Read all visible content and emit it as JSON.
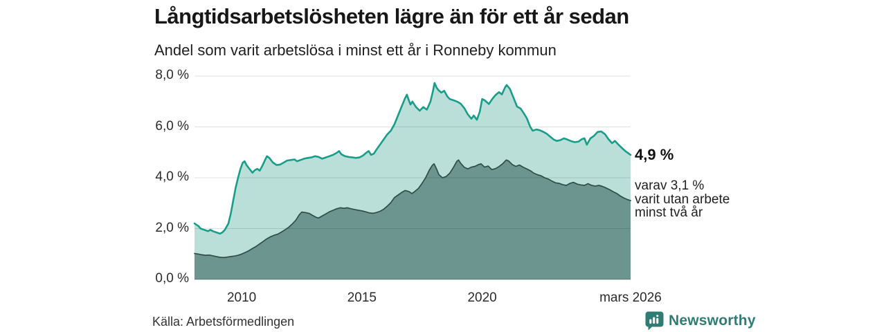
{
  "header": {
    "title": "Långtidsarbetslösheten lägre än för ett år sedan",
    "subtitle": "Andel som varit arbetslösa i minst ett år i Ronneby kommun"
  },
  "annotations": {
    "end_value_label": "4,9 %",
    "sub_lines": [
      "varav 3,1 %",
      "varit utan arbete",
      "minst två år"
    ]
  },
  "footer": {
    "source": "Källa: Arbetsförmedlingen",
    "brand": "Newsworthy"
  },
  "colors": {
    "line_total": "#189d88",
    "fill_total": "#b9dfd8",
    "line_two_years": "#2f4d48",
    "fill_two_years": "#6b958e",
    "gridline": "rgba(0,0,0,0.12)",
    "baseline": "rgba(0,0,0,0.30)",
    "brand_teal": "#2e7c74"
  },
  "chart_data": {
    "type": "area",
    "title": "Långtidsarbetslösheten lägre än för ett år sedan",
    "subtitle": "Andel som varit arbetslösa i minst ett år i Ronneby kommun",
    "unit": "%",
    "x_domain": [
      2008.04,
      2026.17
    ],
    "y_domain": [
      0,
      8
    ],
    "grid": true,
    "y_ticks": [
      {
        "v": 0,
        "label": "0,0 %"
      },
      {
        "v": 2,
        "label": "2,0 %"
      },
      {
        "v": 4,
        "label": "4,0 %"
      },
      {
        "v": 6,
        "label": "6,0 %"
      },
      {
        "v": 8,
        "label": "8,0 %"
      }
    ],
    "x_ticks": [
      {
        "v": 2010,
        "label": "2010"
      },
      {
        "v": 2015,
        "label": "2015"
      },
      {
        "v": 2020,
        "label": "2020"
      },
      {
        "v": 2026.17,
        "label": "mars 2026"
      }
    ],
    "series": [
      {
        "name": "Andel som varit arbetslösa minst ett år",
        "end_label": "4,9 %",
        "stroke": "#189d88",
        "stroke_width": 2.6,
        "fill": "#b9dfd8",
        "points": [
          [
            2008.04,
            2.2
          ],
          [
            2008.2,
            2.1
          ],
          [
            2008.3,
            2.0
          ],
          [
            2008.45,
            1.95
          ],
          [
            2008.6,
            1.9
          ],
          [
            2008.7,
            1.95
          ],
          [
            2008.8,
            1.9
          ],
          [
            2008.95,
            1.85
          ],
          [
            2009.1,
            1.8
          ],
          [
            2009.2,
            1.85
          ],
          [
            2009.3,
            1.95
          ],
          [
            2009.45,
            2.2
          ],
          [
            2009.55,
            2.6
          ],
          [
            2009.65,
            3.1
          ],
          [
            2009.75,
            3.6
          ],
          [
            2009.85,
            4.0
          ],
          [
            2009.95,
            4.35
          ],
          [
            2010.05,
            4.6
          ],
          [
            2010.12,
            4.65
          ],
          [
            2010.2,
            4.5
          ],
          [
            2010.3,
            4.38
          ],
          [
            2010.45,
            4.2
          ],
          [
            2010.55,
            4.3
          ],
          [
            2010.65,
            4.35
          ],
          [
            2010.75,
            4.28
          ],
          [
            2010.85,
            4.45
          ],
          [
            2010.95,
            4.65
          ],
          [
            2011.05,
            4.85
          ],
          [
            2011.15,
            4.78
          ],
          [
            2011.3,
            4.6
          ],
          [
            2011.45,
            4.5
          ],
          [
            2011.6,
            4.52
          ],
          [
            2011.75,
            4.6
          ],
          [
            2011.9,
            4.68
          ],
          [
            2012.05,
            4.7
          ],
          [
            2012.2,
            4.72
          ],
          [
            2012.3,
            4.65
          ],
          [
            2012.45,
            4.7
          ],
          [
            2012.6,
            4.75
          ],
          [
            2012.75,
            4.78
          ],
          [
            2012.9,
            4.8
          ],
          [
            2013.05,
            4.85
          ],
          [
            2013.2,
            4.82
          ],
          [
            2013.35,
            4.75
          ],
          [
            2013.5,
            4.8
          ],
          [
            2013.65,
            4.85
          ],
          [
            2013.8,
            4.9
          ],
          [
            2013.95,
            4.98
          ],
          [
            2014.05,
            5.05
          ],
          [
            2014.15,
            4.92
          ],
          [
            2014.3,
            4.85
          ],
          [
            2014.45,
            4.82
          ],
          [
            2014.6,
            4.8
          ],
          [
            2014.75,
            4.78
          ],
          [
            2014.9,
            4.8
          ],
          [
            2015.05,
            4.88
          ],
          [
            2015.2,
            5.0
          ],
          [
            2015.28,
            5.05
          ],
          [
            2015.38,
            4.9
          ],
          [
            2015.5,
            4.95
          ],
          [
            2015.6,
            5.1
          ],
          [
            2015.75,
            5.3
          ],
          [
            2015.9,
            5.5
          ],
          [
            2016.05,
            5.7
          ],
          [
            2016.2,
            5.85
          ],
          [
            2016.35,
            6.1
          ],
          [
            2016.5,
            6.45
          ],
          [
            2016.65,
            6.8
          ],
          [
            2016.78,
            7.1
          ],
          [
            2016.87,
            7.27
          ],
          [
            2016.95,
            7.05
          ],
          [
            2017.02,
            6.88
          ],
          [
            2017.1,
            7.0
          ],
          [
            2017.25,
            6.78
          ],
          [
            2017.4,
            6.64
          ],
          [
            2017.55,
            6.78
          ],
          [
            2017.7,
            6.68
          ],
          [
            2017.85,
            7.0
          ],
          [
            2017.95,
            7.4
          ],
          [
            2018.02,
            7.73
          ],
          [
            2018.1,
            7.55
          ],
          [
            2018.18,
            7.45
          ],
          [
            2018.3,
            7.35
          ],
          [
            2018.42,
            7.42
          ],
          [
            2018.55,
            7.2
          ],
          [
            2018.65,
            7.1
          ],
          [
            2018.8,
            7.05
          ],
          [
            2018.95,
            7.0
          ],
          [
            2019.1,
            6.92
          ],
          [
            2019.25,
            6.75
          ],
          [
            2019.4,
            6.5
          ],
          [
            2019.55,
            6.32
          ],
          [
            2019.65,
            6.45
          ],
          [
            2019.78,
            6.28
          ],
          [
            2019.9,
            6.6
          ],
          [
            2020.0,
            7.1
          ],
          [
            2020.1,
            7.05
          ],
          [
            2020.28,
            6.9
          ],
          [
            2020.42,
            7.1
          ],
          [
            2020.55,
            7.25
          ],
          [
            2020.7,
            7.37
          ],
          [
            2020.82,
            7.28
          ],
          [
            2020.95,
            7.55
          ],
          [
            2021.02,
            7.65
          ],
          [
            2021.15,
            7.5
          ],
          [
            2021.3,
            7.15
          ],
          [
            2021.45,
            6.8
          ],
          [
            2021.6,
            6.72
          ],
          [
            2021.72,
            6.55
          ],
          [
            2021.85,
            6.35
          ],
          [
            2022.0,
            6.0
          ],
          [
            2022.1,
            5.85
          ],
          [
            2022.25,
            5.9
          ],
          [
            2022.4,
            5.87
          ],
          [
            2022.55,
            5.8
          ],
          [
            2022.7,
            5.72
          ],
          [
            2022.85,
            5.6
          ],
          [
            2022.98,
            5.5
          ],
          [
            2023.1,
            5.45
          ],
          [
            2023.25,
            5.48
          ],
          [
            2023.4,
            5.55
          ],
          [
            2023.55,
            5.5
          ],
          [
            2023.7,
            5.44
          ],
          [
            2023.85,
            5.4
          ],
          [
            2024.0,
            5.42
          ],
          [
            2024.15,
            5.52
          ],
          [
            2024.25,
            5.55
          ],
          [
            2024.35,
            5.3
          ],
          [
            2024.5,
            5.55
          ],
          [
            2024.65,
            5.65
          ],
          [
            2024.8,
            5.8
          ],
          [
            2024.95,
            5.82
          ],
          [
            2025.1,
            5.72
          ],
          [
            2025.25,
            5.52
          ],
          [
            2025.4,
            5.36
          ],
          [
            2025.52,
            5.45
          ],
          [
            2025.65,
            5.32
          ],
          [
            2025.8,
            5.18
          ],
          [
            2025.95,
            5.05
          ],
          [
            2026.17,
            4.9
          ]
        ]
      },
      {
        "name": "varav varit utan arbete minst två år",
        "end_label": "3,1 %",
        "stroke": "#2f4d48",
        "stroke_width": 1.7,
        "fill": "#6b958e",
        "points": [
          [
            2008.04,
            1.02
          ],
          [
            2008.2,
            1.0
          ],
          [
            2008.35,
            0.97
          ],
          [
            2008.5,
            0.95
          ],
          [
            2008.65,
            0.96
          ],
          [
            2008.8,
            0.93
          ],
          [
            2008.95,
            0.9
          ],
          [
            2009.1,
            0.87
          ],
          [
            2009.25,
            0.86
          ],
          [
            2009.4,
            0.88
          ],
          [
            2009.55,
            0.9
          ],
          [
            2009.7,
            0.92
          ],
          [
            2009.85,
            0.95
          ],
          [
            2010.0,
            1.0
          ],
          [
            2010.15,
            1.06
          ],
          [
            2010.3,
            1.13
          ],
          [
            2010.45,
            1.22
          ],
          [
            2010.6,
            1.3
          ],
          [
            2010.75,
            1.4
          ],
          [
            2010.9,
            1.5
          ],
          [
            2011.05,
            1.6
          ],
          [
            2011.2,
            1.68
          ],
          [
            2011.35,
            1.74
          ],
          [
            2011.5,
            1.78
          ],
          [
            2011.65,
            1.86
          ],
          [
            2011.8,
            1.95
          ],
          [
            2011.95,
            2.05
          ],
          [
            2012.1,
            2.18
          ],
          [
            2012.25,
            2.33
          ],
          [
            2012.4,
            2.55
          ],
          [
            2012.5,
            2.65
          ],
          [
            2012.65,
            2.63
          ],
          [
            2012.8,
            2.6
          ],
          [
            2012.95,
            2.52
          ],
          [
            2013.1,
            2.44
          ],
          [
            2013.2,
            2.42
          ],
          [
            2013.35,
            2.5
          ],
          [
            2013.5,
            2.58
          ],
          [
            2013.65,
            2.66
          ],
          [
            2013.8,
            2.72
          ],
          [
            2013.95,
            2.78
          ],
          [
            2014.1,
            2.82
          ],
          [
            2014.25,
            2.8
          ],
          [
            2014.4,
            2.82
          ],
          [
            2014.55,
            2.78
          ],
          [
            2014.7,
            2.75
          ],
          [
            2014.85,
            2.72
          ],
          [
            2015.0,
            2.7
          ],
          [
            2015.15,
            2.66
          ],
          [
            2015.3,
            2.62
          ],
          [
            2015.45,
            2.6
          ],
          [
            2015.6,
            2.63
          ],
          [
            2015.75,
            2.68
          ],
          [
            2015.9,
            2.76
          ],
          [
            2016.05,
            2.88
          ],
          [
            2016.2,
            3.02
          ],
          [
            2016.35,
            3.22
          ],
          [
            2016.5,
            3.32
          ],
          [
            2016.65,
            3.42
          ],
          [
            2016.8,
            3.5
          ],
          [
            2016.95,
            3.46
          ],
          [
            2017.08,
            3.38
          ],
          [
            2017.2,
            3.46
          ],
          [
            2017.35,
            3.58
          ],
          [
            2017.5,
            3.78
          ],
          [
            2017.65,
            4.0
          ],
          [
            2017.8,
            4.3
          ],
          [
            2017.92,
            4.48
          ],
          [
            2018.0,
            4.55
          ],
          [
            2018.1,
            4.35
          ],
          [
            2018.2,
            4.12
          ],
          [
            2018.35,
            4.0
          ],
          [
            2018.5,
            4.05
          ],
          [
            2018.65,
            4.18
          ],
          [
            2018.8,
            4.4
          ],
          [
            2018.95,
            4.65
          ],
          [
            2019.02,
            4.7
          ],
          [
            2019.1,
            4.58
          ],
          [
            2019.25,
            4.42
          ],
          [
            2019.4,
            4.35
          ],
          [
            2019.55,
            4.42
          ],
          [
            2019.7,
            4.45
          ],
          [
            2019.85,
            4.52
          ],
          [
            2019.95,
            4.55
          ],
          [
            2020.1,
            4.42
          ],
          [
            2020.25,
            4.46
          ],
          [
            2020.4,
            4.32
          ],
          [
            2020.55,
            4.36
          ],
          [
            2020.7,
            4.44
          ],
          [
            2020.85,
            4.55
          ],
          [
            2021.0,
            4.7
          ],
          [
            2021.1,
            4.66
          ],
          [
            2021.25,
            4.52
          ],
          [
            2021.4,
            4.45
          ],
          [
            2021.55,
            4.5
          ],
          [
            2021.7,
            4.42
          ],
          [
            2021.85,
            4.35
          ],
          [
            2022.0,
            4.28
          ],
          [
            2022.15,
            4.18
          ],
          [
            2022.3,
            4.12
          ],
          [
            2022.45,
            4.08
          ],
          [
            2022.6,
            4.0
          ],
          [
            2022.75,
            3.95
          ],
          [
            2022.9,
            3.87
          ],
          [
            2023.05,
            3.8
          ],
          [
            2023.2,
            3.78
          ],
          [
            2023.35,
            3.73
          ],
          [
            2023.5,
            3.7
          ],
          [
            2023.65,
            3.78
          ],
          [
            2023.8,
            3.82
          ],
          [
            2023.95,
            3.75
          ],
          [
            2024.1,
            3.72
          ],
          [
            2024.25,
            3.7
          ],
          [
            2024.4,
            3.77
          ],
          [
            2024.55,
            3.7
          ],
          [
            2024.7,
            3.67
          ],
          [
            2024.85,
            3.7
          ],
          [
            2025.0,
            3.66
          ],
          [
            2025.15,
            3.6
          ],
          [
            2025.3,
            3.53
          ],
          [
            2025.45,
            3.45
          ],
          [
            2025.6,
            3.38
          ],
          [
            2025.75,
            3.28
          ],
          [
            2025.9,
            3.2
          ],
          [
            2026.05,
            3.14
          ],
          [
            2026.17,
            3.1
          ]
        ]
      }
    ],
    "legend_position": "none",
    "annotations": [
      {
        "text": "4,9 %",
        "bold": true
      },
      {
        "text": "varav 3,1 % varit utan arbete minst två år",
        "bold": false
      }
    ]
  }
}
